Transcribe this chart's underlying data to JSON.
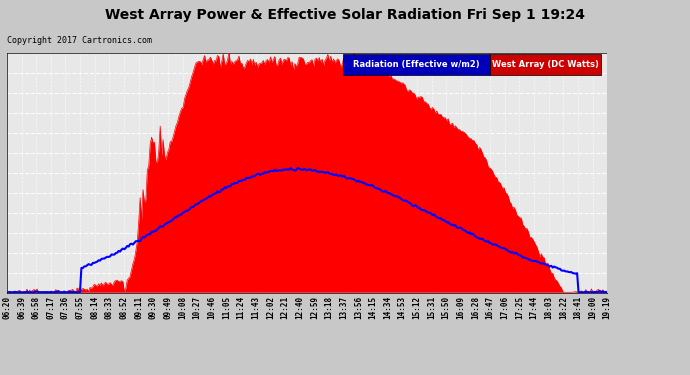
{
  "title": "West Array Power & Effective Solar Radiation Fri Sep 1 19:24",
  "copyright": "Copyright 2017 Cartronics.com",
  "legend_labels": [
    "Radiation (Effective w/m2)",
    "West Array (DC Watts)"
  ],
  "legend_bg_colors": [
    "#0000cc",
    "#cc0000"
  ],
  "yticks": [
    -1.6,
    133.5,
    268.7,
    403.8,
    539.0,
    674.1,
    809.3,
    944.4,
    1079.6,
    1214.7,
    1349.9,
    1485.0,
    1620.2
  ],
  "ymin": -1.6,
  "ymax": 1620.2,
  "plot_bg": "#f0f0f0",
  "fig_bg": "#c8c8c8",
  "grid_color": "white",
  "title_color": "black",
  "xtick_labels": [
    "06:20",
    "06:39",
    "06:58",
    "07:17",
    "07:36",
    "07:55",
    "08:14",
    "08:33",
    "08:52",
    "09:11",
    "09:30",
    "09:49",
    "10:08",
    "10:27",
    "10:46",
    "11:05",
    "11:24",
    "11:43",
    "12:02",
    "12:21",
    "12:40",
    "12:59",
    "13:18",
    "13:37",
    "13:56",
    "14:15",
    "14:34",
    "14:53",
    "15:12",
    "15:31",
    "15:50",
    "16:09",
    "16:28",
    "16:47",
    "17:06",
    "17:25",
    "17:44",
    "18:03",
    "18:22",
    "18:41",
    "19:00",
    "19:19"
  ]
}
